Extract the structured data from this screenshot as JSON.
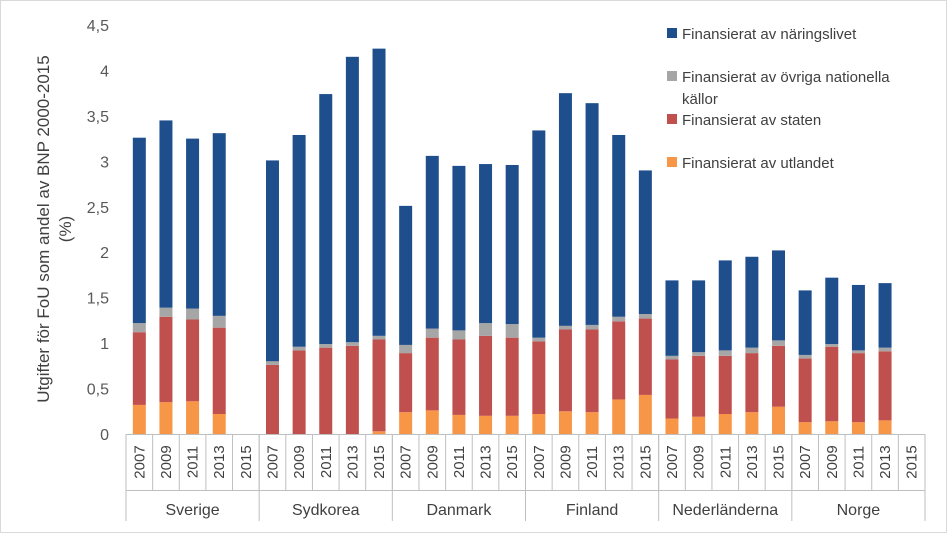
{
  "chart_data": {
    "type": "bar",
    "stacked": true,
    "ylabel_lines": [
      "Utgifter för FoU som andel av BNP 2000-2015",
      "(%)"
    ],
    "ylim": [
      0,
      4.5
    ],
    "yticks": [
      "0",
      "0,5",
      "1",
      "1,5",
      "2",
      "2,5",
      "3",
      "3,5",
      "4",
      "4,5"
    ],
    "grid": false,
    "legend_position": "top-right",
    "years": [
      "2007",
      "2009",
      "2011",
      "2013",
      "2015"
    ],
    "groups": [
      {
        "name": "Sverige",
        "utlandet": [
          0.32,
          0.35,
          0.36,
          0.22,
          0
        ],
        "staten": [
          0.8,
          0.94,
          0.9,
          0.95,
          0
        ],
        "ovriga": [
          0.1,
          0.1,
          0.12,
          0.13,
          0
        ],
        "naringslivet": [
          2.04,
          2.06,
          1.87,
          2.01,
          0
        ]
      },
      {
        "name": "Sydkorea",
        "utlandet": [
          0.0,
          0.0,
          0.0,
          0.0,
          0.03
        ],
        "staten": [
          0.76,
          0.92,
          0.95,
          0.97,
          1.01
        ],
        "ovriga": [
          0.04,
          0.04,
          0.04,
          0.04,
          0.04
        ],
        "naringslivet": [
          2.21,
          2.33,
          2.75,
          3.14,
          3.16
        ]
      },
      {
        "name": "Danmark",
        "utlandet": [
          0.24,
          0.26,
          0.21,
          0.2,
          0.2
        ],
        "staten": [
          0.65,
          0.8,
          0.83,
          0.88,
          0.86
        ],
        "ovriga": [
          0.09,
          0.1,
          0.1,
          0.14,
          0.15
        ],
        "naringslivet": [
          1.53,
          1.9,
          1.81,
          1.75,
          1.75
        ]
      },
      {
        "name": "Finland",
        "utlandet": [
          0.22,
          0.25,
          0.24,
          0.38,
          0.43
        ],
        "staten": [
          0.8,
          0.9,
          0.91,
          0.86,
          0.84
        ],
        "ovriga": [
          0.04,
          0.04,
          0.05,
          0.05,
          0.05
        ],
        "naringslivet": [
          2.28,
          2.56,
          2.44,
          2.0,
          1.58
        ]
      },
      {
        "name": "Nederländerna",
        "utlandet": [
          0.17,
          0.19,
          0.22,
          0.24,
          0.3
        ],
        "staten": [
          0.65,
          0.67,
          0.64,
          0.65,
          0.67
        ],
        "ovriga": [
          0.04,
          0.04,
          0.06,
          0.06,
          0.06
        ],
        "naringslivet": [
          0.83,
          0.79,
          0.99,
          1.0,
          0.99
        ]
      },
      {
        "name": "Norge",
        "utlandet": [
          0.13,
          0.14,
          0.13,
          0.15,
          0
        ],
        "staten": [
          0.7,
          0.82,
          0.76,
          0.76,
          0
        ],
        "ovriga": [
          0.04,
          0.03,
          0.03,
          0.04,
          0
        ],
        "naringslivet": [
          0.71,
          0.73,
          0.72,
          0.71,
          0
        ]
      }
    ],
    "series": [
      {
        "key": "naringslivet",
        "name": "Finansierat av näringslivet",
        "color": "#1f4e8c"
      },
      {
        "key": "ovriga",
        "name_lines": [
          "Finansierat av övriga nationella",
          "källor"
        ],
        "color": "#a6a6a6"
      },
      {
        "key": "staten",
        "name": "Finansierat av staten",
        "color": "#c0504d"
      },
      {
        "key": "utlandet",
        "name": "Finansierat av utlandet",
        "color": "#f79646"
      }
    ]
  }
}
